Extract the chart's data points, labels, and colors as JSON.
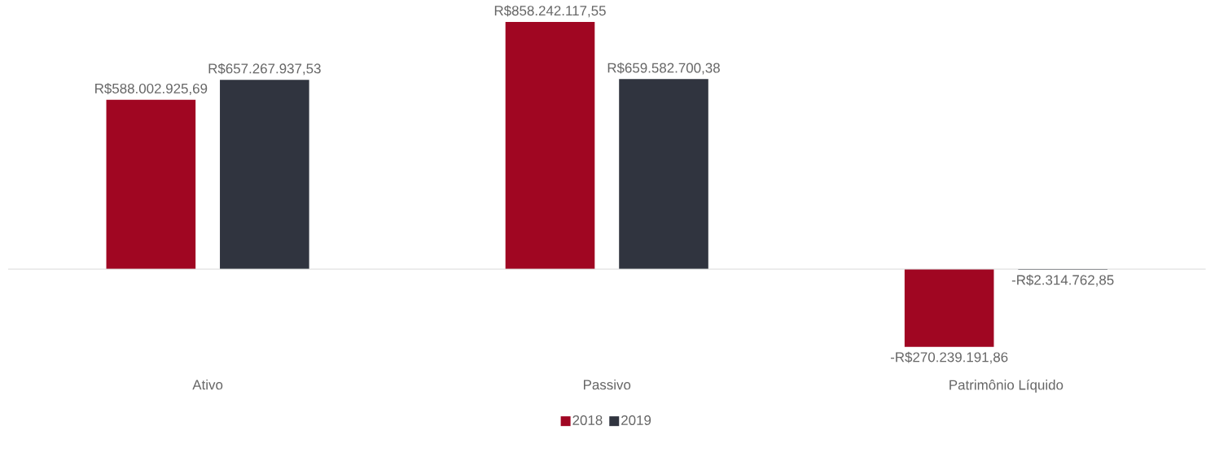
{
  "chart_data": {
    "type": "bar",
    "categories": [
      "Ativo",
      "Passivo",
      "Patrimônio Líquido"
    ],
    "series": [
      {
        "name": "2018",
        "color": "#a00622",
        "values": [
          588002925.69,
          858242117.55,
          -270239191.86
        ],
        "value_labels": [
          "R$588.002.925,69",
          "R$858.242.117,55",
          "-R$270.239.191,86"
        ]
      },
      {
        "name": "2019",
        "color": "#30343f",
        "values": [
          657267937.53,
          659582700.38,
          -2314762.85
        ],
        "value_labels": [
          "R$657.267.937,53",
          "R$659.582.700,38",
          "-R$2.314.762,85"
        ]
      }
    ],
    "legend": "bottom"
  }
}
